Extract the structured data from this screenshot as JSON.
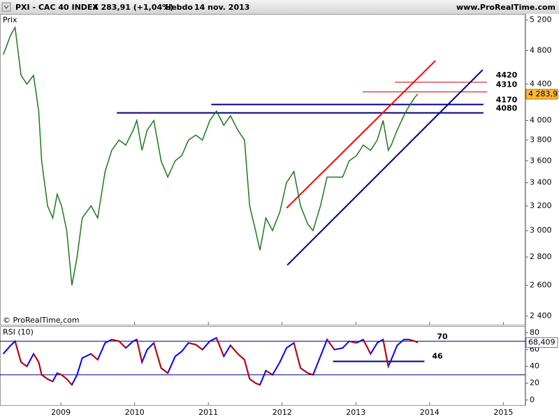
{
  "header": {
    "symbol": "PXI - CAC 40 INDEX",
    "last": "4 283,91 (+1,04%)",
    "period": "Hebdo",
    "date": "14 nov. 2013",
    "site": "www.ProRealTime.com"
  },
  "chart_data": [
    {
      "type": "line",
      "y_label": "Prix",
      "watermark": "© ProRealTime.com",
      "log_scale": true,
      "x": [
        2008.22,
        2008.32,
        2008.38,
        2008.46,
        2008.54,
        2008.63,
        2008.7,
        2008.74,
        2008.82,
        2008.89,
        2008.95,
        2009.01,
        2009.08,
        2009.15,
        2009.22,
        2009.29,
        2009.41,
        2009.5,
        2009.6,
        2009.69,
        2009.79,
        2009.88,
        2009.98,
        2010.03,
        2010.1,
        2010.17,
        2010.26,
        2010.36,
        2010.45,
        2010.55,
        2010.64,
        2010.73,
        2010.83,
        2010.92,
        2011.02,
        2011.11,
        2011.21,
        2011.3,
        2011.4,
        2011.49,
        2011.56,
        2011.64,
        2011.7,
        2011.78,
        2011.87,
        2011.97,
        2012.06,
        2012.16,
        2012.25,
        2012.35,
        2012.42,
        2012.52,
        2012.61,
        2012.71,
        2012.82,
        2012.91,
        2013.01,
        2013.1,
        2013.2,
        2013.29,
        2013.37,
        2013.44,
        2013.48,
        2013.56,
        2013.65,
        2013.72,
        2013.8,
        2013.84
      ],
      "values": [
        4750,
        5000,
        5100,
        4500,
        4400,
        4500,
        4100,
        3600,
        3200,
        3100,
        3300,
        3200,
        3000,
        2600,
        2800,
        3100,
        3200,
        3100,
        3500,
        3700,
        3800,
        3750,
        3900,
        4000,
        3700,
        3900,
        4000,
        3600,
        3450,
        3600,
        3650,
        3800,
        3850,
        3800,
        4000,
        4100,
        3950,
        4050,
        3900,
        3800,
        3200,
        3000,
        2850,
        3100,
        3000,
        3150,
        3400,
        3500,
        3200,
        3050,
        3000,
        3200,
        3450,
        3450,
        3450,
        3600,
        3650,
        3750,
        3700,
        3800,
        4000,
        3700,
        3750,
        3900,
        4050,
        4150,
        4250,
        4283.91
      ],
      "color": "#1a7a1a",
      "last_label": "4 283,91",
      "xlim": [
        2008.175,
        2015.3
      ],
      "xticks": [
        2009,
        2010,
        2011,
        2012,
        2013,
        2014,
        2015
      ],
      "ylim": [
        2346,
        5283
      ],
      "yticks": [
        {
          "value": 2400,
          "label": "2 400"
        },
        {
          "value": 2600,
          "label": "2 600"
        },
        {
          "value": 2800,
          "label": "2 800"
        },
        {
          "value": 3000,
          "label": "3 000"
        },
        {
          "value": 3200,
          "label": "3 200"
        },
        {
          "value": 3400,
          "label": "3 400"
        },
        {
          "value": 3600,
          "label": "3 600"
        },
        {
          "value": 3800,
          "label": "3 800"
        },
        {
          "value": 4000,
          "label": "4 000"
        },
        {
          "value": 4400,
          "label": "4 400"
        },
        {
          "value": 4800,
          "label": "4 800"
        },
        {
          "value": 5200,
          "label": "5 200"
        }
      ],
      "levels": [
        {
          "value": 4420,
          "x": [
            2013.53,
            2014.78
          ],
          "color": "#cc0000"
        },
        {
          "value": 4310,
          "x": [
            2013.09,
            2014.78
          ],
          "color": "#cc0000"
        },
        {
          "value": 4170,
          "x": [
            2011.04,
            2014.73
          ],
          "color": "#000080"
        },
        {
          "value": 4080,
          "x": [
            2009.76,
            2014.73
          ],
          "color": "#000080"
        }
      ],
      "trendlines": [
        {
          "x": [
            2012.06,
            2014.08
          ],
          "y": [
            3182,
            4677
          ],
          "color": "#ff0000"
        },
        {
          "x": [
            2012.07,
            2014.72
          ],
          "y": [
            2741,
            4565
          ],
          "color": "#000080"
        }
      ]
    },
    {
      "type": "line",
      "title": "RSI (10)",
      "x": [
        2008.22,
        2008.32,
        2008.38,
        2008.46,
        2008.54,
        2008.63,
        2008.7,
        2008.74,
        2008.82,
        2008.89,
        2008.95,
        2009.01,
        2009.08,
        2009.15,
        2009.22,
        2009.29,
        2009.41,
        2009.5,
        2009.6,
        2009.69,
        2009.79,
        2009.88,
        2009.98,
        2010.03,
        2010.1,
        2010.17,
        2010.26,
        2010.36,
        2010.45,
        2010.55,
        2010.64,
        2010.73,
        2010.83,
        2010.92,
        2011.02,
        2011.11,
        2011.21,
        2011.3,
        2011.4,
        2011.49,
        2011.56,
        2011.64,
        2011.7,
        2011.78,
        2011.87,
        2011.97,
        2012.06,
        2012.16,
        2012.25,
        2012.35,
        2012.42,
        2012.52,
        2012.61,
        2012.71,
        2012.82,
        2012.91,
        2013.01,
        2013.1,
        2013.2,
        2013.29,
        2013.37,
        2013.44,
        2013.48,
        2013.56,
        2013.65,
        2013.72,
        2013.8,
        2013.84
      ],
      "values": [
        55,
        65,
        70,
        45,
        40,
        55,
        45,
        30,
        25,
        22,
        32,
        30,
        25,
        18,
        30,
        50,
        55,
        48,
        68,
        72,
        70,
        62,
        70,
        72,
        45,
        60,
        68,
        38,
        32,
        52,
        58,
        68,
        66,
        60,
        70,
        74,
        52,
        65,
        55,
        48,
        25,
        20,
        18,
        35,
        30,
        45,
        62,
        68,
        38,
        32,
        30,
        52,
        72,
        60,
        62,
        70,
        68,
        72,
        55,
        68,
        72,
        40,
        48,
        65,
        72,
        72,
        70,
        68.409
      ],
      "up_color": "#0000ff",
      "down_color": "#c00000",
      "last_label": "68,409",
      "xlim": [
        2008.175,
        2015.3
      ],
      "xticks": [
        2009,
        2010,
        2011,
        2012,
        2013,
        2014,
        2015
      ],
      "ylim": [
        -6,
        88
      ],
      "yticks": [
        0,
        20,
        40,
        60,
        80
      ],
      "levels": [
        {
          "value": 70,
          "color": "#000080"
        },
        {
          "value": 30,
          "color": "#000080"
        }
      ],
      "support": {
        "value": 46,
        "x": [
          2012.69,
          2013.93
        ],
        "color": "#000080"
      }
    }
  ]
}
